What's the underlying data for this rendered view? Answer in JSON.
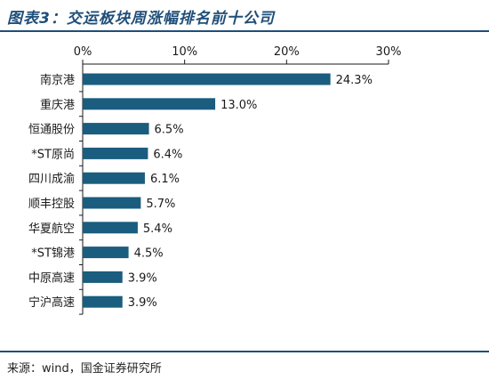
{
  "title": "图表3：交运板块周涨幅排名前十公司",
  "source": "来源：wind，国金证券研究所",
  "colors": {
    "bar": "#1a5d7e",
    "title": "#1f4e79",
    "rule": "#1f4e79"
  },
  "chart_data": {
    "type": "bar",
    "orientation": "horizontal",
    "categories": [
      "南京港",
      "重庆港",
      "恒通股份",
      "*ST原尚",
      "四川成渝",
      "顺丰控股",
      "华夏航空",
      "*ST锦港",
      "中原高速",
      "宁沪高速"
    ],
    "values": [
      24.3,
      13.0,
      6.5,
      6.4,
      6.1,
      5.7,
      5.4,
      4.5,
      3.9,
      3.9
    ],
    "value_labels": [
      "24.3%",
      "13.0%",
      "6.5%",
      "6.4%",
      "6.1%",
      "5.7%",
      "5.4%",
      "4.5%",
      "3.9%",
      "3.9%"
    ],
    "xlim": [
      0,
      30
    ],
    "xticks": [
      0,
      10,
      20,
      30
    ],
    "xtick_labels": [
      "0%",
      "10%",
      "20%",
      "30%"
    ],
    "axis_position": "top",
    "grid": false,
    "legend": "none"
  }
}
